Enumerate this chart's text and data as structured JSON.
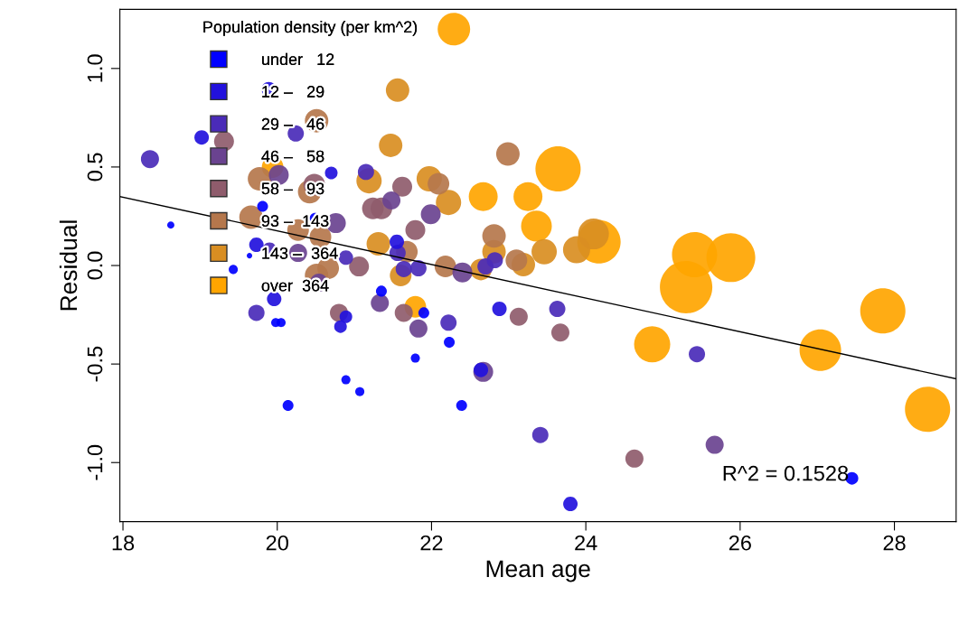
{
  "chart_data": {
    "type": "bubble",
    "xlabel": "Mean age",
    "ylabel": "Residual",
    "legend_title": "Population density (per km^2)",
    "legend": "top left",
    "marker": "circle",
    "grid": false,
    "xlim": [
      17.96,
      28.8
    ],
    "xticks": [
      18,
      20,
      22,
      24,
      26,
      28
    ],
    "ylim": [
      -1.3,
      1.3
    ],
    "yticks": [
      {
        "value": -1.0,
        "label": "-1.0"
      },
      {
        "value": -0.5,
        "label": "-0.5"
      },
      {
        "value": 0.0,
        "label": "0.0"
      },
      {
        "value": 0.5,
        "label": "0.5"
      },
      {
        "value": 1.0,
        "label": "1.0"
      }
    ],
    "annotations": [
      "R^2 = 0.1528"
    ],
    "series": [
      {
        "name": "under   12",
        "color": "#0000ff",
        "x": [
          18.62,
          19.43,
          19.64,
          19.81,
          20.49,
          21.35,
          21.9,
          22.23,
          21.79,
          20.89,
          21.07,
          20.14,
          22.39,
          19.98,
          20.05,
          27.45
        ],
        "values": [
          0.205,
          -0.02,
          0.05,
          0.3,
          0.24,
          -0.13,
          -0.24,
          -0.39,
          -0.47,
          -0.58,
          -0.64,
          -0.71,
          -0.71,
          -0.29,
          -0.29,
          -1.08
        ],
        "sizes": [
          0.019,
          0.03,
          0.011,
          0.043,
          0.043,
          0.043,
          0.043,
          0.043,
          0.03,
          0.03,
          0.03,
          0.043,
          0.043,
          0.03,
          0.03,
          0.058
        ]
      },
      {
        "name": "12 –   29",
        "color": "#2211dd",
        "x": [
          23.8,
          22.88,
          22.64,
          19.02,
          19.89,
          20.7,
          19.73,
          21.55,
          19.96,
          20.89,
          20.82
        ],
        "values": [
          -1.21,
          -0.22,
          -0.53,
          0.65,
          0.895,
          0.47,
          0.105,
          0.12,
          -0.17,
          -0.26,
          -0.31
        ],
        "sizes": [
          0.076,
          0.076,
          0.076,
          0.076,
          0.076,
          0.058,
          0.076,
          0.076,
          0.076,
          0.058,
          0.058
        ]
      },
      {
        "name": "29 –   46",
        "color": "#4a2bb8",
        "x": [
          23.63,
          23.41,
          25.44,
          22.82,
          22.7,
          22.22,
          18.35,
          20.24,
          21.15,
          19.9,
          21.56,
          20.89,
          21.64,
          21.83,
          19.73
        ],
        "values": [
          -0.22,
          -0.86,
          -0.45,
          0.027,
          -0.005,
          -0.29,
          0.54,
          0.67,
          0.475,
          0.08,
          0.064,
          0.04,
          -0.018,
          -0.014,
          -0.24
        ],
        "sizes": [
          0.096,
          0.096,
          0.096,
          0.096,
          0.096,
          0.096,
          0.119,
          0.096,
          0.096,
          0.076,
          0.096,
          0.076,
          0.096,
          0.096,
          0.096
        ]
      },
      {
        "name": "46 –   58",
        "color": "#6a4390",
        "x": [
          25.67,
          22.4,
          22.67,
          20.02,
          21.48,
          21.99,
          20.76,
          20.27,
          20.54,
          21.33,
          21.83
        ],
        "values": [
          -0.91,
          -0.035,
          -0.54,
          0.46,
          0.33,
          0.26,
          0.215,
          0.064,
          -0.087,
          -0.19,
          -0.32
        ],
        "sizes": [
          0.119,
          0.144,
          0.144,
          0.144,
          0.119,
          0.144,
          0.144,
          0.119,
          0.119,
          0.119,
          0.119
        ]
      },
      {
        "name": "58 –   93",
        "color": "#8f5c6c",
        "x": [
          24.63,
          23.67,
          23.13,
          19.31,
          20.48,
          21.62,
          21.24,
          21.35,
          21.79,
          21.06,
          21.64,
          20.8
        ],
        "values": [
          -0.98,
          -0.34,
          -0.26,
          0.63,
          0.41,
          0.4,
          0.29,
          0.29,
          0.18,
          -0.005,
          -0.24,
          -0.24
        ],
        "sizes": [
          0.119,
          0.119,
          0.119,
          0.144,
          0.171,
          0.144,
          0.171,
          0.171,
          0.144,
          0.144,
          0.119,
          0.119
        ]
      },
      {
        "name": "93 –  143",
        "color": "#b5774c",
        "x": [
          22.99,
          22.81,
          23.1,
          22.18,
          22.09,
          20.51,
          19.77,
          20.42,
          19.66,
          20.27,
          20.56,
          21.68,
          20.51,
          20.66
        ],
        "values": [
          0.566,
          0.15,
          0.027,
          -0.005,
          0.415,
          0.735,
          0.44,
          0.375,
          0.245,
          0.18,
          0.145,
          0.07,
          -0.05,
          -0.014
        ],
        "sizes": [
          0.201,
          0.201,
          0.171,
          0.171,
          0.171,
          0.201,
          0.201,
          0.201,
          0.201,
          0.171,
          0.171,
          0.171,
          0.201,
          0.171
        ]
      },
      {
        "name": "143 –  364",
        "color": "#d98e22",
        "x": [
          24.1,
          23.88,
          23.46,
          22.81,
          23.19,
          22.64,
          21.56,
          21.47,
          21.19,
          21.97,
          22.22,
          21.31,
          21.6
        ],
        "values": [
          0.16,
          0.08,
          0.07,
          0.07,
          0.005,
          -0.02,
          0.89,
          0.61,
          0.43,
          0.44,
          0.32,
          0.11,
          -0.05
        ],
        "sizes": [
          0.344,
          0.268,
          0.233,
          0.201,
          0.201,
          0.171,
          0.201,
          0.201,
          0.233,
          0.233,
          0.233,
          0.201,
          0.171
        ]
      },
      {
        "name": "over  364",
        "color": "#ffa500",
        "x": [
          24.86,
          27.04,
          27.85,
          28.43,
          25.41,
          25.88,
          25.3,
          24.17,
          22.29,
          23.64,
          22.67,
          23.25,
          23.36,
          19.94,
          21.79
        ],
        "values": [
          -0.4,
          -0.43,
          -0.23,
          -0.73,
          0.055,
          0.04,
          -0.11,
          0.12,
          1.2,
          0.49,
          0.35,
          0.35,
          0.2,
          0.5,
          -0.21
        ],
        "sizes": [
          0.476,
          0.629,
          0.743,
          0.743,
          0.743,
          0.867,
          1,
          0.685,
          0.385,
          0.743,
          0.304,
          0.304,
          0.344,
          0.171,
          0.171
        ]
      },
      {
        "type": "line",
        "marker": "none",
        "color": "#000000",
        "x": [
          17.96,
          28.8
        ],
        "values": [
          0.35,
          -0.575
        ]
      }
    ]
  }
}
